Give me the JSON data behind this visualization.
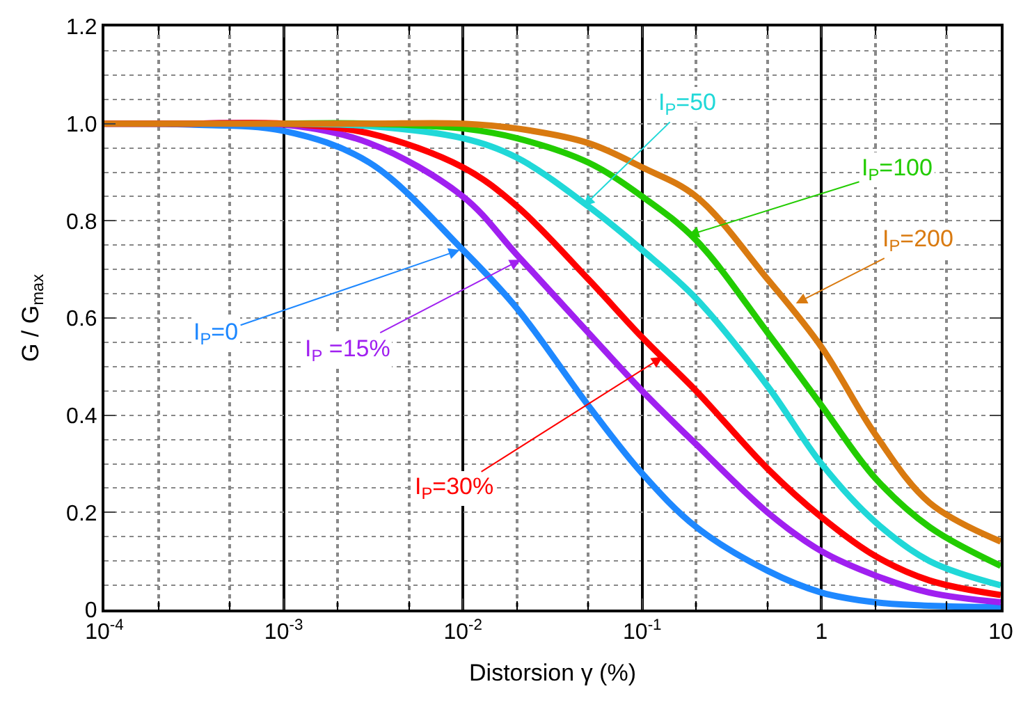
{
  "chart_data": {
    "type": "line",
    "xlabel": "Distorsion γ (%)",
    "ylabel": "G / G$_{max}$",
    "log": "x",
    "grid": true,
    "marker": "none",
    "line_style": "solid",
    "xlim": [
      0.0001,
      10
    ],
    "xticks": [
      {
        "value": 0.0001,
        "label": "10$^{-4}$"
      },
      {
        "value": 0.001,
        "label": "10$^{-3}$"
      },
      {
        "value": 0.01,
        "label": "10$^{-2}$"
      },
      {
        "value": 0.1,
        "label": "10$^{-1}$"
      },
      1,
      10
    ],
    "ylim": [
      0,
      1.2
    ],
    "yticks": [
      0,
      0.2,
      0.4,
      0.6,
      0.8,
      {
        "value": 1,
        "label": "1.0"
      },
      1.2
    ],
    "x": [
      0.0001,
      0.0003,
      0.001,
      0.003,
      0.01,
      0.02,
      0.05,
      0.1,
      0.2,
      0.5,
      1,
      2,
      4,
      10
    ],
    "series": [
      {
        "color": "#1e88ff",
        "values": [
          1.0,
          0.998,
          0.985,
          0.92,
          0.74,
          0.62,
          0.42,
          0.28,
          0.17,
          0.08,
          0.035,
          0.015,
          0.008,
          0.005
        ]
      },
      {
        "color": "#a020f0",
        "values": [
          1.0,
          1.0,
          0.998,
          0.96,
          0.85,
          0.73,
          0.57,
          0.45,
          0.34,
          0.2,
          0.12,
          0.07,
          0.035,
          0.015
        ]
      },
      {
        "color": "#ff0000",
        "values": [
          1.0,
          1.0,
          1.0,
          0.98,
          0.91,
          0.83,
          0.68,
          0.56,
          0.45,
          0.29,
          0.19,
          0.11,
          0.06,
          0.03
        ]
      },
      {
        "color": "#20d8d8",
        "values": [
          null,
          null,
          1.0,
          0.995,
          0.97,
          0.93,
          0.83,
          0.74,
          0.64,
          0.46,
          0.3,
          0.18,
          0.1,
          0.05
        ]
      },
      {
        "color": "#22cc00",
        "values": [
          null,
          null,
          1.0,
          1.0,
          0.99,
          0.97,
          0.92,
          0.85,
          0.76,
          0.57,
          0.42,
          0.27,
          0.17,
          0.09
        ]
      },
      {
        "color": "#d97a10",
        "values": [
          1.0,
          1.0,
          1.0,
          1.0,
          1.0,
          0.99,
          0.96,
          0.91,
          0.85,
          0.68,
          0.54,
          0.36,
          0.22,
          0.14
        ]
      }
    ],
    "annotations": [
      {
        "text": "I$_{P}$=0",
        "x": 0.0096,
        "y": 0.74
      },
      {
        "text": "I$_{P}$ =15%",
        "x": 0.021,
        "y": 0.72
      },
      {
        "text": "I$_{P}$=30%",
        "x": 0.13,
        "y": 0.52
      },
      {
        "text": "I$_{P}$=50",
        "x": 0.047,
        "y": 0.83
      },
      {
        "text": "I$_{P}$=100",
        "x": 0.18,
        "y": 0.77
      },
      {
        "text": "I$_{P}$=200",
        "x": 0.72,
        "y": 0.63
      }
    ]
  }
}
